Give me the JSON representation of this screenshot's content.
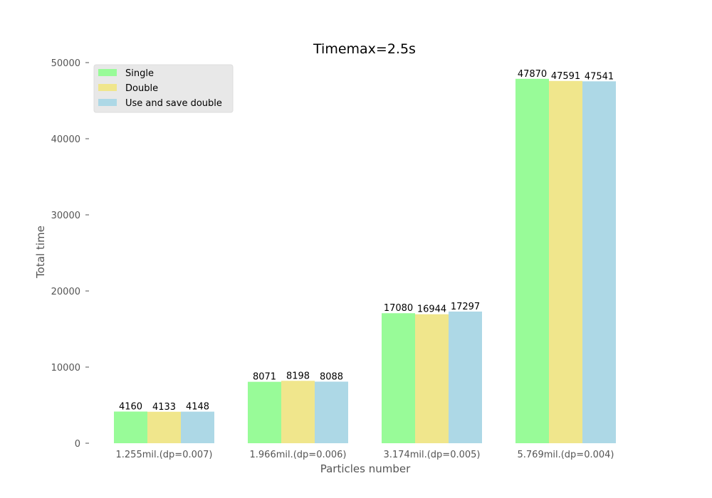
{
  "chart_data": {
    "type": "bar",
    "title": "Timemax=2.5s",
    "xlabel": "Particles number",
    "ylabel": "Total time",
    "categories": [
      "1.255mil.(dp=0.007)",
      "1.966mil.(dp=0.006)",
      "3.174mil.(dp=0.005)",
      "5.769mil.(dp=0.004)"
    ],
    "series": [
      {
        "name": "Single",
        "color": "#98fb98",
        "values": [
          4160,
          8071,
          17080,
          47870
        ]
      },
      {
        "name": "Double",
        "color": "#f0e68c",
        "values": [
          4133,
          8198,
          16944,
          47591
        ]
      },
      {
        "name": "Use and save double",
        "color": "#add8e6",
        "values": [
          4148,
          8088,
          17297,
          47541
        ]
      }
    ],
    "ylim": [
      0,
      50000
    ],
    "yticks": [
      0,
      10000,
      20000,
      30000,
      40000,
      50000
    ],
    "grid": false,
    "legend_position": "top-left"
  }
}
